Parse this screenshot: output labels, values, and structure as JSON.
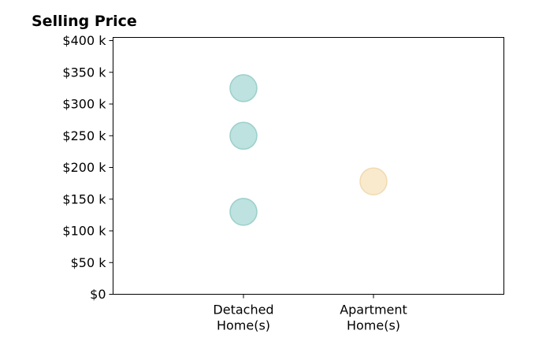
{
  "chart_data": {
    "type": "scatter",
    "title": "Selling Price",
    "xlabel": "",
    "ylabel": "",
    "categories": [
      "Detached\nHome(s)",
      "Apartment\nHome(s)"
    ],
    "category_colors": [
      "#b2ddd9",
      "#f8e6c4"
    ],
    "category_stroke_colors": [
      "#9ccfcb",
      "#f0dab1"
    ],
    "points": [
      {
        "category_index": 0,
        "y": 325000
      },
      {
        "category_index": 0,
        "y": 250000
      },
      {
        "category_index": 0,
        "y": 130000
      },
      {
        "category_index": 1,
        "y": 178000
      }
    ],
    "ylim": [
      0,
      405000
    ],
    "yticks": [
      0,
      50000,
      100000,
      150000,
      200000,
      250000,
      300000,
      350000,
      400000
    ],
    "ytick_labels": [
      "$0",
      "$50 k",
      "$100 k",
      "$150 k",
      "$200 k",
      "$250 k",
      "$300 k",
      "$350 k",
      "$400 k"
    ],
    "grid": false,
    "legend": "none"
  }
}
